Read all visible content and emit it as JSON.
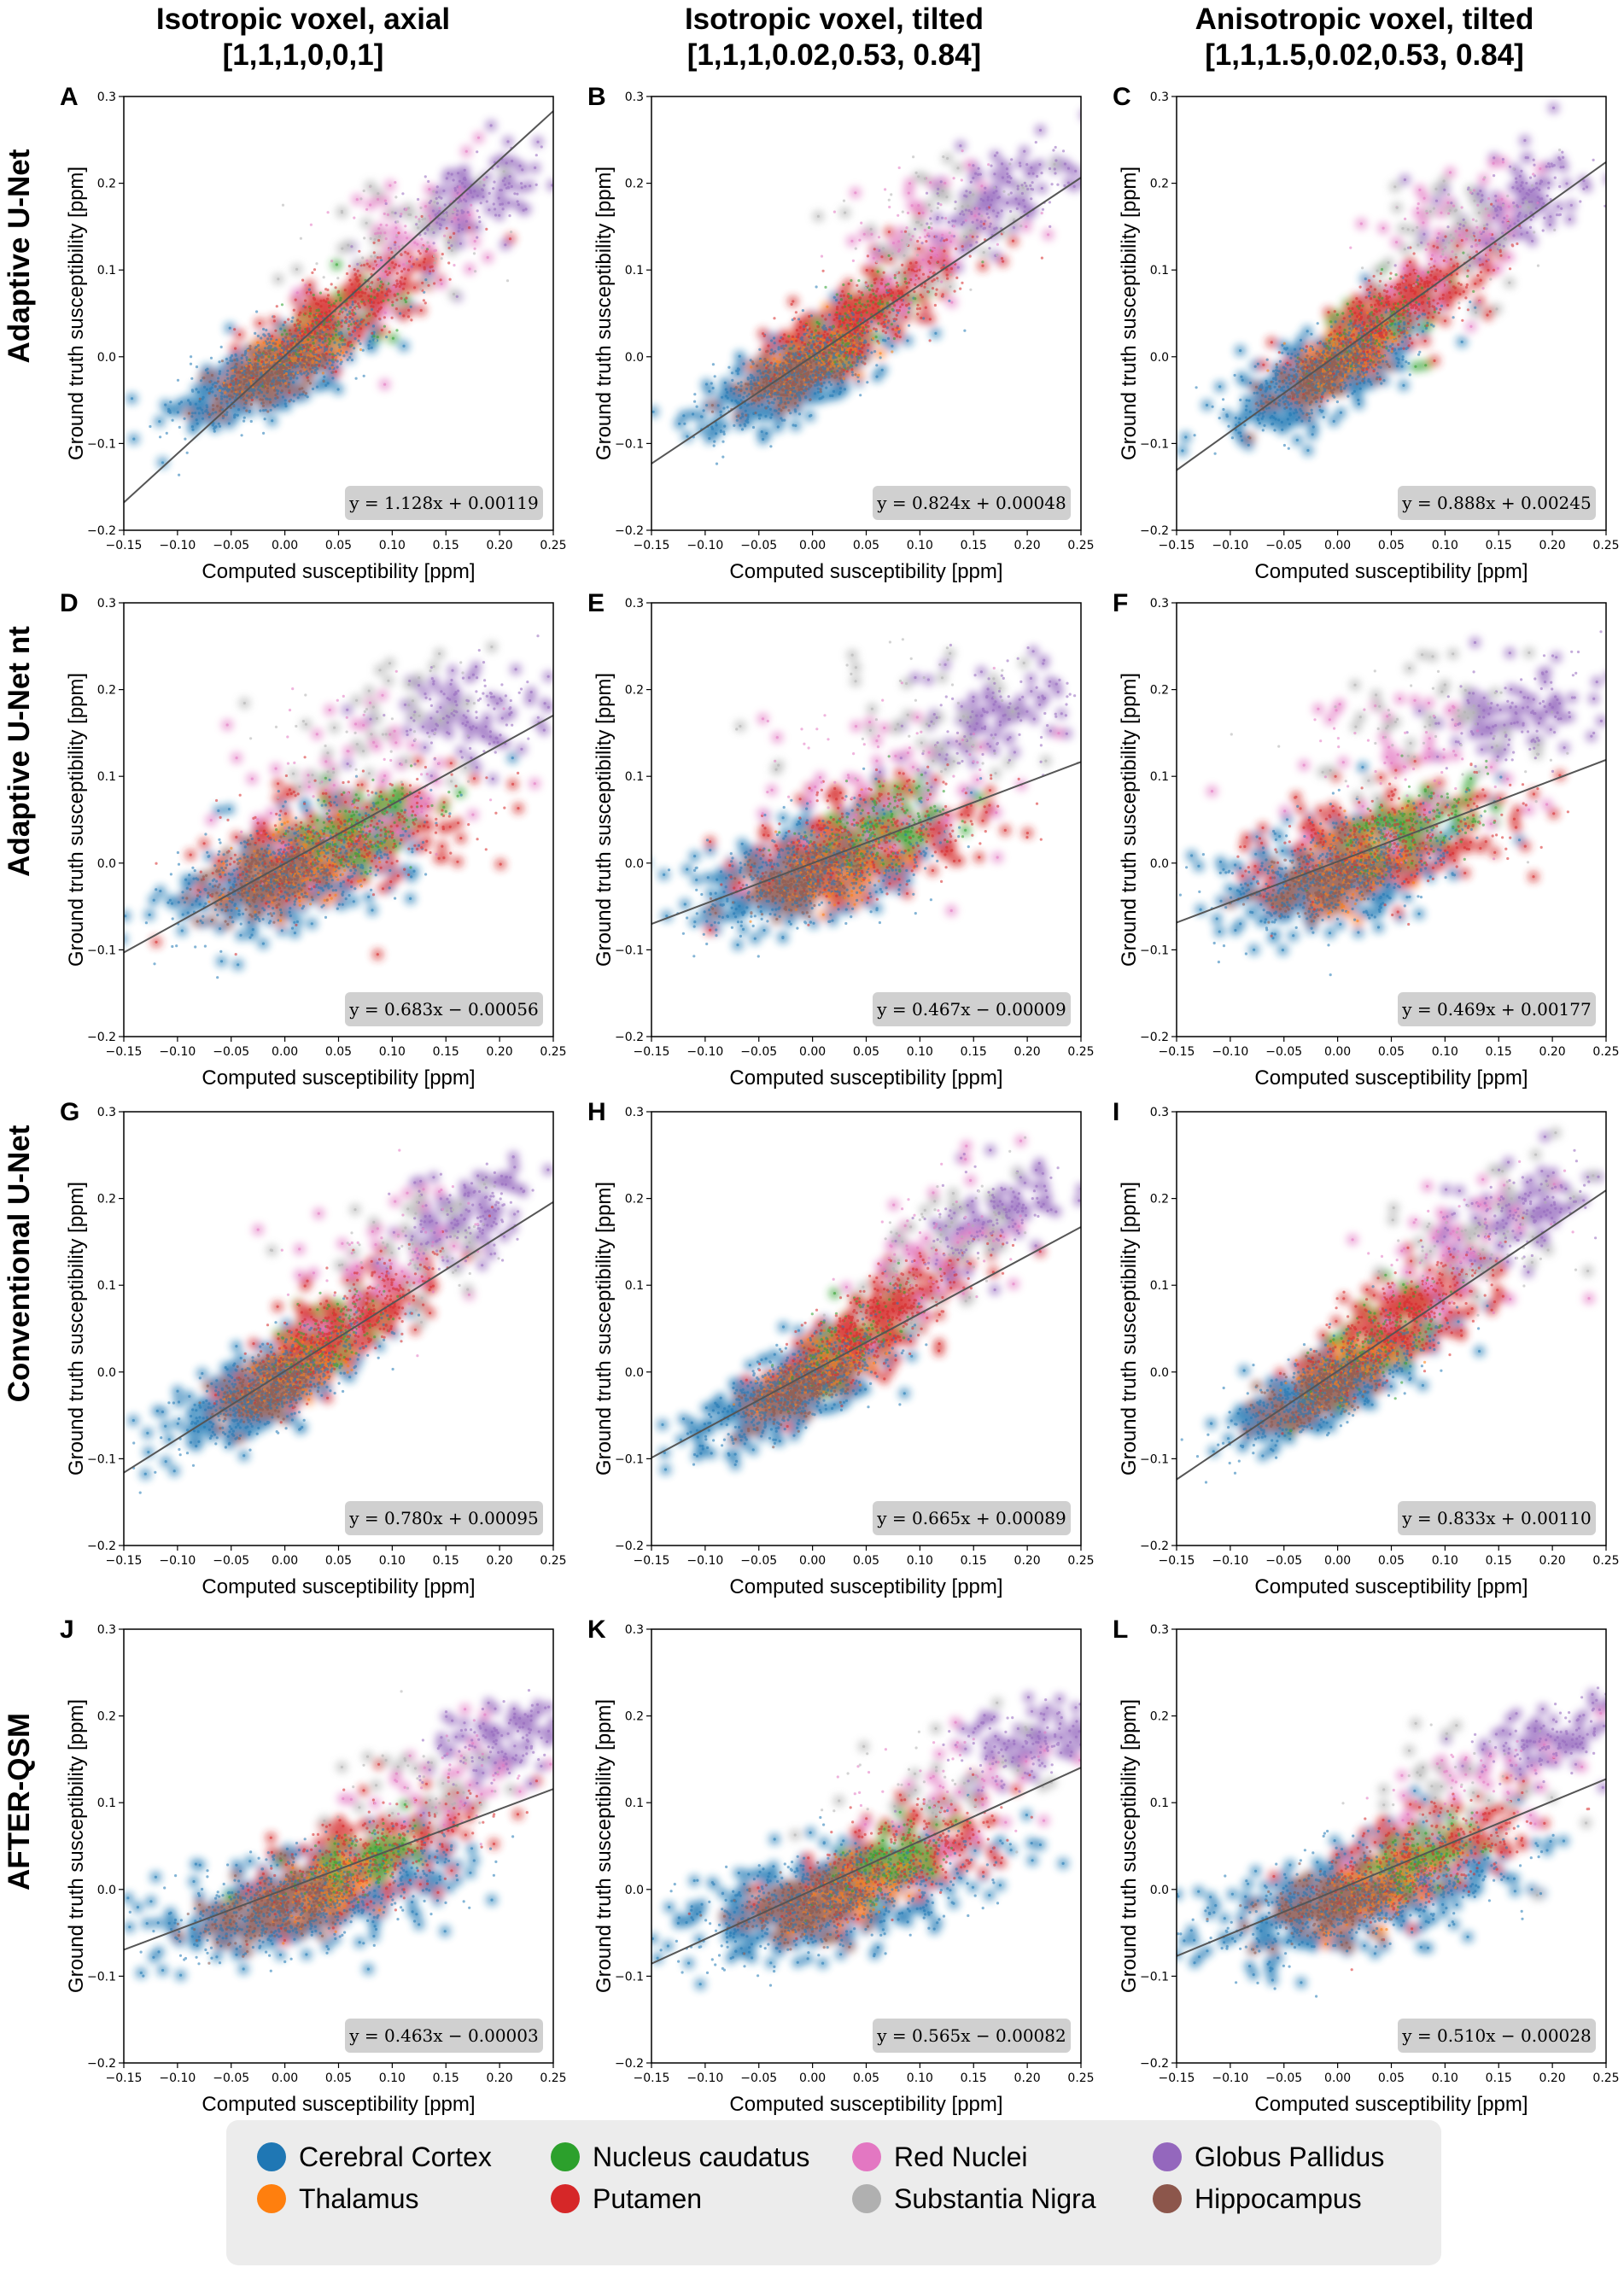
{
  "figure": {
    "column_titles": [
      [
        "Isotropic voxel, axial",
        "[1,1,1,0,0,1]"
      ],
      [
        "Isotropic voxel, tilted",
        "[1,1,1,0.02,0.53, 0.84]"
      ],
      [
        "Anisotropic voxel, tilted",
        "[1,1,1.5,0.02,0.53, 0.84]"
      ]
    ],
    "row_titles": [
      "Adaptive U-Net",
      "Adaptive U-Net nt",
      "Conventional U-Net",
      "AFTER-QSM"
    ]
  },
  "axes": {
    "xlabel": "Computed susceptibility [ppm]",
    "ylabel": "Ground truth susceptibility [ppm]",
    "x_ticks": [
      "-0.15",
      "-0.10",
      "-0.05",
      "0.00",
      "0.05",
      "0.10",
      "0.15",
      "0.20",
      "0.25"
    ],
    "y_ticks": [
      "-0.2",
      "-0.1",
      "0.0",
      "0.1",
      "0.2",
      "0.3"
    ]
  },
  "legend": {
    "items": [
      {
        "label": "Cerebral Cortex",
        "color": "#1f77b4"
      },
      {
        "label": "Thalamus",
        "color": "#ff7f0e"
      },
      {
        "label": "Nucleus caudatus",
        "color": "#2ca02c"
      },
      {
        "label": "Putamen",
        "color": "#d62728"
      },
      {
        "label": "Red Nuclei",
        "color": "#e377c2"
      },
      {
        "label": "Substantia Nigra",
        "color": "#b0b0b0"
      },
      {
        "label": "Globus Pallidus",
        "color": "#9467bd"
      },
      {
        "label": "Hippocampus",
        "color": "#8c564b"
      }
    ]
  },
  "chart_data": [
    {
      "panel": "A",
      "type": "scatter",
      "method": "Adaptive U-Net",
      "condition": "Isotropic voxel, axial",
      "xlim": [
        -0.15,
        0.25
      ],
      "ylim": [
        -0.2,
        0.3
      ],
      "fit": {
        "slope": 1.128,
        "intercept": 0.00119,
        "label": "y = 1.128x + 0.00119"
      }
    },
    {
      "panel": "B",
      "type": "scatter",
      "method": "Adaptive U-Net",
      "condition": "Isotropic voxel, tilted",
      "xlim": [
        -0.15,
        0.25
      ],
      "ylim": [
        -0.2,
        0.3
      ],
      "fit": {
        "slope": 0.824,
        "intercept": 0.00048,
        "label": "y = 0.824x + 0.00048"
      }
    },
    {
      "panel": "C",
      "type": "scatter",
      "method": "Adaptive U-Net",
      "condition": "Anisotropic voxel, tilted",
      "xlim": [
        -0.15,
        0.25
      ],
      "ylim": [
        -0.2,
        0.3
      ],
      "fit": {
        "slope": 0.888,
        "intercept": 0.00245,
        "label": "y = 0.888x + 0.00245"
      }
    },
    {
      "panel": "D",
      "type": "scatter",
      "method": "Adaptive U-Net nt",
      "condition": "Isotropic voxel, axial",
      "xlim": [
        -0.15,
        0.25
      ],
      "ylim": [
        -0.2,
        0.3
      ],
      "fit": {
        "slope": 0.683,
        "intercept": -0.00056,
        "label": "y = 0.683x − 0.00056"
      }
    },
    {
      "panel": "E",
      "type": "scatter",
      "method": "Adaptive U-Net nt",
      "condition": "Isotropic voxel, tilted",
      "xlim": [
        -0.15,
        0.25
      ],
      "ylim": [
        -0.2,
        0.3
      ],
      "fit": {
        "slope": 0.467,
        "intercept": -9e-05,
        "label": "y = 0.467x − 0.00009"
      }
    },
    {
      "panel": "F",
      "type": "scatter",
      "method": "Adaptive U-Net nt",
      "condition": "Anisotropic voxel, tilted",
      "xlim": [
        -0.15,
        0.25
      ],
      "ylim": [
        -0.2,
        0.3
      ],
      "fit": {
        "slope": 0.469,
        "intercept": 0.00177,
        "label": "y = 0.469x + 0.00177"
      }
    },
    {
      "panel": "G",
      "type": "scatter",
      "method": "Conventional U-Net",
      "condition": "Isotropic voxel, axial",
      "xlim": [
        -0.15,
        0.25
      ],
      "ylim": [
        -0.2,
        0.3
      ],
      "fit": {
        "slope": 0.78,
        "intercept": 0.00095,
        "label": "y = 0.780x + 0.00095"
      }
    },
    {
      "panel": "H",
      "type": "scatter",
      "method": "Conventional U-Net",
      "condition": "Isotropic voxel, tilted",
      "xlim": [
        -0.15,
        0.25
      ],
      "ylim": [
        -0.2,
        0.3
      ],
      "fit": {
        "slope": 0.665,
        "intercept": 0.00089,
        "label": "y = 0.665x + 0.00089"
      }
    },
    {
      "panel": "I",
      "type": "scatter",
      "method": "Conventional U-Net",
      "condition": "Anisotropic voxel, tilted",
      "xlim": [
        -0.15,
        0.25
      ],
      "ylim": [
        -0.2,
        0.3
      ],
      "fit": {
        "slope": 0.833,
        "intercept": 0.0011,
        "label": "y = 0.833x + 0.00110"
      }
    },
    {
      "panel": "J",
      "type": "scatter",
      "method": "AFTER-QSM",
      "condition": "Isotropic voxel, axial",
      "xlim": [
        -0.15,
        0.25
      ],
      "ylim": [
        -0.2,
        0.3
      ],
      "fit": {
        "slope": 0.463,
        "intercept": -3e-05,
        "label": "y = 0.463x − 0.00003"
      }
    },
    {
      "panel": "K",
      "type": "scatter",
      "method": "AFTER-QSM",
      "condition": "Isotropic voxel, tilted",
      "xlim": [
        -0.15,
        0.25
      ],
      "ylim": [
        -0.2,
        0.3
      ],
      "fit": {
        "slope": 0.565,
        "intercept": -0.00082,
        "label": "y = 0.565x − 0.00082"
      }
    },
    {
      "panel": "L",
      "type": "scatter",
      "method": "AFTER-QSM",
      "condition": "Anisotropic voxel, tilted",
      "xlim": [
        -0.15,
        0.25
      ],
      "ylim": [
        -0.2,
        0.3
      ],
      "fit": {
        "slope": 0.51,
        "intercept": -0.00028,
        "label": "y = 0.510x − 0.00028"
      }
    }
  ]
}
